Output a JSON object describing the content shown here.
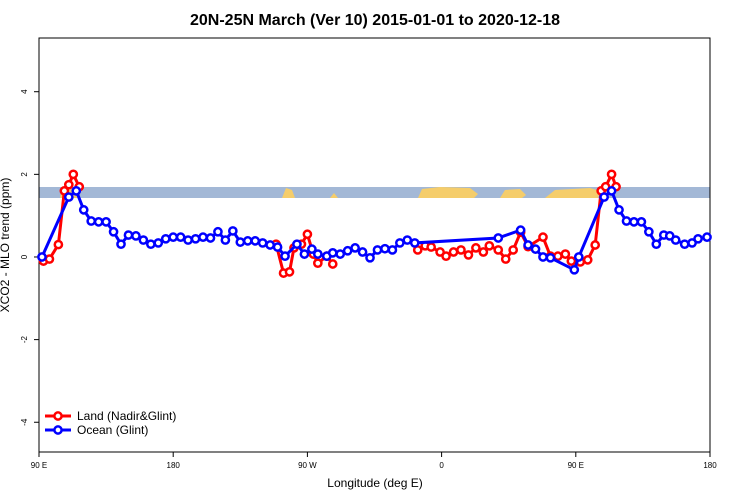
{
  "chart_data": {
    "type": "line",
    "title": "20N-25N March (Ver 10)   2015-01-01 to 2020-12-18",
    "x_label": "Longitude (deg E)",
    "y_label": "XCO2 - MLO trend (ppm)",
    "xlim": [
      90,
      540
    ],
    "ylim": [
      -4.72,
      5.3
    ],
    "xticks": [
      {
        "value": 90,
        "label": "90 E"
      },
      {
        "value": 180,
        "label": "180"
      },
      {
        "value": 270,
        "label": "90 W"
      },
      {
        "value": 360,
        "label": "0"
      },
      {
        "value": 450,
        "label": "90 E"
      },
      {
        "value": 540,
        "label": "180"
      }
    ],
    "yticks": [
      -4,
      -2,
      0,
      2,
      4
    ],
    "legend": "bottomleft",
    "series": [
      {
        "name": "Land (Nadir&Glint)",
        "color": "#ff0000",
        "x": [
          93,
          97,
          103,
          107,
          110,
          113,
          117,
          180,
          249,
          254,
          258,
          261,
          266,
          270,
          274,
          277,
          283,
          287,
          320,
          344,
          349,
          353,
          359,
          363,
          368,
          373,
          378,
          383,
          388,
          392,
          398,
          403,
          408,
          413,
          418,
          428,
          433,
          438,
          443,
          447,
          453,
          458,
          463,
          467,
          470,
          474,
          477
        ],
        "values": [
          -0.1,
          -0.05,
          0.3,
          1.6,
          1.75,
          2.0,
          1.7,
          null,
          0.31,
          -0.39,
          -0.36,
          0.22,
          0.31,
          0.55,
          0.07,
          -0.15,
          0.02,
          -0.17,
          null,
          0.17,
          0.27,
          0.24,
          0.12,
          0.02,
          0.12,
          0.17,
          0.05,
          0.22,
          0.12,
          0.27,
          0.17,
          -0.05,
          0.17,
          0.6,
          0.25,
          0.48,
          0.02,
          0.02,
          0.07,
          -0.1,
          -0.12,
          -0.07,
          0.29,
          1.6,
          1.7,
          2.0,
          1.7
        ]
      },
      {
        "name": "Ocean (Glint)",
        "color": "#0000ff",
        "x": [
          92,
          110,
          115,
          120,
          125,
          130,
          135,
          140,
          145,
          150,
          155,
          160,
          165,
          170,
          175,
          180,
          185,
          190,
          195,
          200,
          205,
          210,
          215,
          220,
          225,
          230,
          235,
          240,
          245,
          250,
          255,
          263,
          268,
          273,
          277,
          283,
          287,
          292,
          297,
          302,
          307,
          312,
          317,
          322,
          327,
          332,
          337,
          342,
          398,
          413,
          418,
          423,
          428,
          433,
          449,
          452,
          469,
          474,
          479,
          484,
          489,
          494,
          499,
          504,
          509,
          513,
          517,
          523,
          528,
          532,
          538
        ],
        "values": [
          0,
          1.45,
          1.6,
          1.14,
          0.87,
          0.85,
          0.85,
          0.61,
          0.31,
          0.53,
          0.51,
          0.41,
          0.31,
          0.34,
          0.44,
          0.48,
          0.48,
          0.41,
          0.44,
          0.48,
          0.46,
          0.61,
          0.41,
          0.63,
          0.36,
          0.39,
          0.39,
          0.34,
          0.29,
          0.24,
          0.02,
          0.31,
          0.07,
          0.19,
          0.07,
          0.02,
          0.1,
          0.07,
          0.15,
          0.22,
          0.12,
          -0.02,
          0.17,
          0.2,
          0.17,
          0.34,
          0.41,
          0.34,
          0.46,
          0.65,
          0.29,
          0.19,
          0,
          -0.02,
          -0.31,
          0,
          1.45,
          1.6,
          1.14,
          0.87,
          0.85,
          0.85,
          0.61,
          0.31,
          0.53,
          0.51,
          0.41,
          0.31,
          0.34,
          0.44,
          0.48
        ]
      }
    ]
  }
}
